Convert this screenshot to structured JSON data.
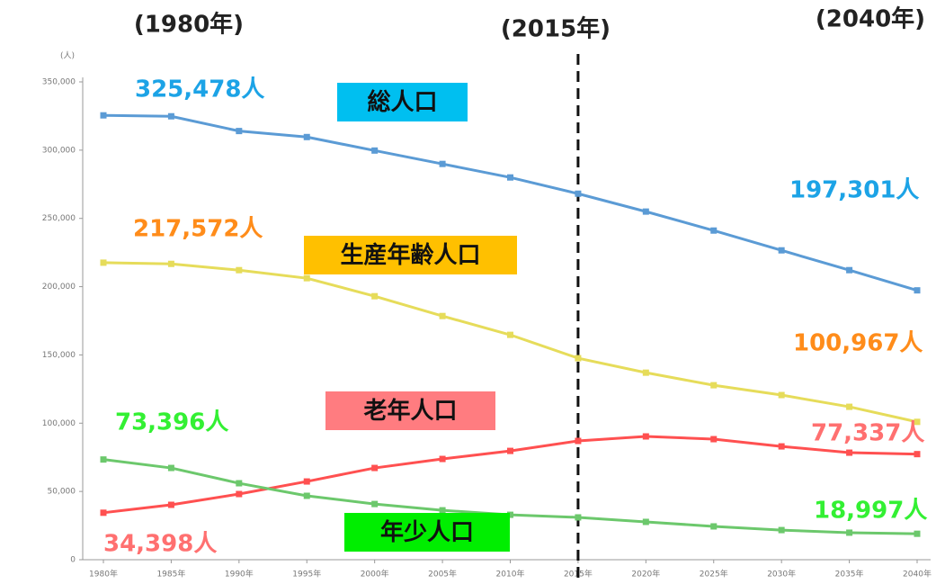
{
  "chart_data": {
    "type": "line",
    "ylabel": "(人)",
    "annotations": [
      "(1980年)",
      "(2015年)",
      "(2040年)"
    ],
    "categories": [
      "1980年",
      "1985年",
      "1990年",
      "1995年",
      "2000年",
      "2005年",
      "2010年",
      "2015年",
      "2020年",
      "2025年",
      "2030年",
      "2035年",
      "2040年"
    ],
    "ylim": [
      0,
      350000
    ],
    "yticks": [
      0,
      {
        "value": 50000,
        "label": "50,000"
      },
      {
        "value": 100000,
        "label": "100,000"
      },
      {
        "value": 150000,
        "label": "150,000"
      },
      {
        "value": 200000,
        "label": "200,000"
      },
      {
        "value": 250000,
        "label": "250,000"
      },
      {
        "value": 300000,
        "label": "300,000"
      },
      {
        "value": 350000,
        "label": "350,000"
      }
    ],
    "series": [
      {
        "name": "総人口",
        "color": "#5b9bd5",
        "label_color": "#1ca3e6",
        "box_color": "#00bff0",
        "values": [
          325478,
          324800,
          314000,
          309600,
          299700,
          289900,
          280000,
          268100,
          255000,
          241100,
          226600,
          212100,
          197301
        ],
        "value_labels": [
          "325,478人",
          null,
          null,
          null,
          null,
          null,
          null,
          null,
          null,
          null,
          null,
          null,
          "197,301人"
        ]
      },
      {
        "name": "生産年齢人口",
        "color": "#e6dc5a",
        "label_color": "#ff8c1a",
        "box_color": "#ffc000",
        "values": [
          217572,
          216700,
          212100,
          206200,
          193000,
          178500,
          164700,
          147600,
          137000,
          127800,
          120600,
          112000,
          100967
        ],
        "value_labels": [
          "217,572人",
          null,
          null,
          null,
          null,
          null,
          null,
          null,
          null,
          null,
          null,
          null,
          "100,967人"
        ]
      },
      {
        "name": "老年人口",
        "color": "#ff5050",
        "label_color": "#ff7070",
        "box_color": "#ff7c80",
        "values": [
          34398,
          40200,
          48100,
          57300,
          67200,
          73800,
          79700,
          87000,
          90300,
          88300,
          83000,
          78400,
          77337
        ],
        "value_labels": [
          "34,398人",
          null,
          null,
          null,
          null,
          null,
          null,
          null,
          null,
          null,
          null,
          null,
          "77,337人"
        ]
      },
      {
        "name": "年少人口",
        "color": "#6cc86c",
        "label_color": "#33f033",
        "box_color": "#00ee00",
        "values": [
          73396,
          67200,
          56000,
          46800,
          40800,
          36200,
          32900,
          31000,
          27700,
          24400,
          21700,
          19800,
          18997
        ],
        "value_labels": [
          "73,396人",
          null,
          null,
          null,
          null,
          null,
          null,
          null,
          null,
          null,
          null,
          null,
          "18,997人"
        ]
      }
    ]
  }
}
